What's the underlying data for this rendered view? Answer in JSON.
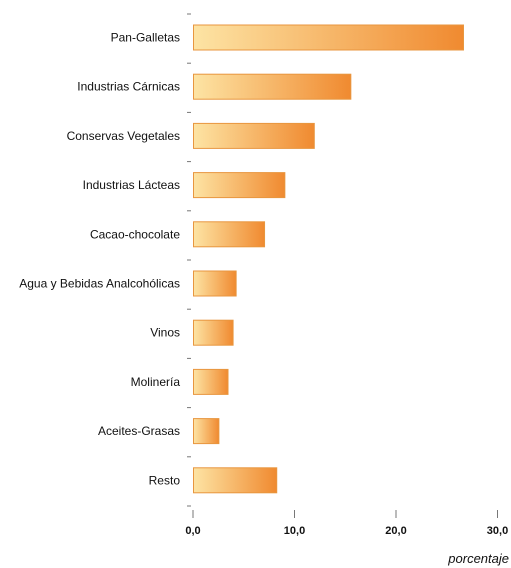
{
  "chart_data": {
    "type": "bar",
    "orientation": "horizontal",
    "categories": [
      "Pan-Galletas",
      "Industrias Cárnicas",
      "Conservas Vegetales",
      "Industrias Lácteas",
      "Cacao-chocolate",
      "Agua y Bebidas Analcohólicas",
      "Vinos",
      "Molinería",
      "Aceites-Grasas",
      "Resto"
    ],
    "values": [
      26.6,
      15.5,
      11.9,
      9.0,
      7.0,
      4.2,
      3.9,
      3.4,
      2.5,
      8.2
    ],
    "x_ticks": [
      "0,0",
      "10,0",
      "20,0",
      "30,0"
    ],
    "xlim": [
      0,
      30
    ],
    "xlabel": "porcentaje",
    "ylabel": "",
    "title": "",
    "grid": false,
    "legend": "none",
    "colors": {
      "bar_start": "#fde4a4",
      "bar_end": "#f08a30",
      "bar_border": "#e8963f"
    }
  }
}
